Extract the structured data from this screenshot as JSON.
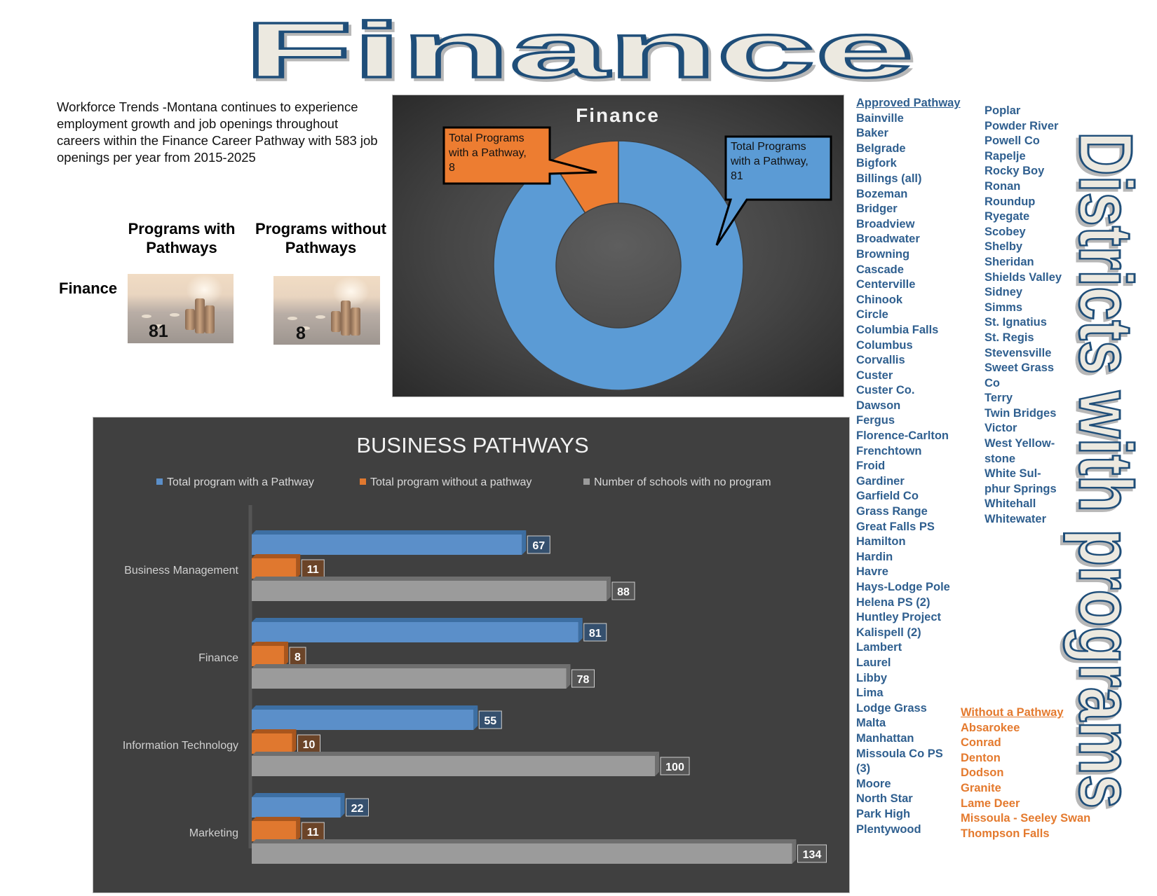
{
  "page_title": "Finance",
  "intro_text": "Workforce Trends -Montana continues to experience employment growth and job openings throughout careers within the Finance Career Pathway with 583 job openings per year from 2015-2025",
  "summary": {
    "col_with": "Programs with Pathways",
    "col_without": "Programs without Pathways",
    "row_label": "Finance",
    "with_value": "81",
    "without_value": "8"
  },
  "donut": {
    "title": "Finance",
    "colors": {
      "with": "#5b9bd5",
      "without": "#ed7d31"
    },
    "callout_without": [
      "Total Programs",
      "with a Pathway,",
      "8"
    ],
    "callout_with": [
      "Total Programs",
      "with a Pathway,",
      "81"
    ]
  },
  "chart_data": [
    {
      "type": "pie",
      "title": "Finance",
      "donut": true,
      "categories": [
        "Total Programs with a Pathway",
        "Total Programs without a Pathway"
      ],
      "values": [
        81,
        8
      ],
      "colors": [
        "#5b9bd5",
        "#ed7d31"
      ]
    },
    {
      "type": "bar",
      "orientation": "horizontal",
      "title": "BUSINESS PATHWAYS",
      "categories": [
        "Business Management",
        "Finance",
        "Information Technology",
        "Marketing"
      ],
      "series": [
        {
          "name": "Total program with a Pathway",
          "values": [
            67,
            81,
            55,
            22
          ],
          "color": "#5b8fc9"
        },
        {
          "name": "Total program without a pathway",
          "values": [
            11,
            8,
            10,
            11
          ],
          "color": "#e0782f"
        },
        {
          "name": "Number of schools with no program",
          "values": [
            88,
            78,
            100,
            134
          ],
          "color": "#9b9b9b"
        }
      ],
      "legend": "top",
      "data_labels": true,
      "grid": false
    }
  ],
  "districts": {
    "vertical_title": "Districts with programs",
    "approved_header": "Approved Pathway",
    "approved_col1": [
      "Bainville",
      "Baker",
      "Belgrade",
      "Bigfork",
      "Billings (all)",
      "Bozeman",
      "Bridger",
      "Broadview",
      "Broadwater",
      "Browning",
      "Cascade",
      "Centerville",
      "Chinook",
      "Circle",
      "Columbia Falls",
      "Columbus",
      "Corvallis",
      "Custer",
      "Custer Co.",
      "Dawson",
      "Fergus",
      "Florence-Carlton",
      "Frenchtown",
      "Froid",
      "Gardiner",
      "Garfield Co",
      "Grass Range",
      "Great Falls PS",
      "Hamilton",
      "Hardin",
      "Havre",
      "Hays-Lodge Pole",
      "Helena PS (2)",
      "Huntley Project",
      "Kalispell (2)",
      "Lambert",
      "Laurel",
      "Libby",
      "Lima",
      "Lodge Grass",
      "Malta",
      "Manhattan",
      "Missoula Co PS",
      "(3)",
      "Moore",
      "North Star",
      "Park High",
      "Plentywood"
    ],
    "approved_col2": [
      "Poplar",
      "Powder River",
      "Powell Co",
      "Rapelje",
      "Rocky Boy",
      "Ronan",
      "Roundup",
      "Ryegate",
      "Scobey",
      "Shelby",
      "Sheridan",
      "Shields Valley",
      "Sidney",
      "Simms",
      "St. Ignatius",
      "St. Regis",
      "Stevensville",
      "Sweet Grass",
      "Co",
      "Terry",
      "Twin Bridges",
      "Victor",
      "West Yellow-",
      "stone",
      "White Sul-",
      "phur Springs",
      "Whitehall",
      "Whitewater"
    ],
    "without_header": "Without a Pathway",
    "without_list": [
      "Absarokee",
      "Conrad",
      "Denton",
      "Dodson",
      "Granite",
      "Lame Deer",
      "Missoula - Seeley Swan",
      "Thompson Falls"
    ]
  }
}
